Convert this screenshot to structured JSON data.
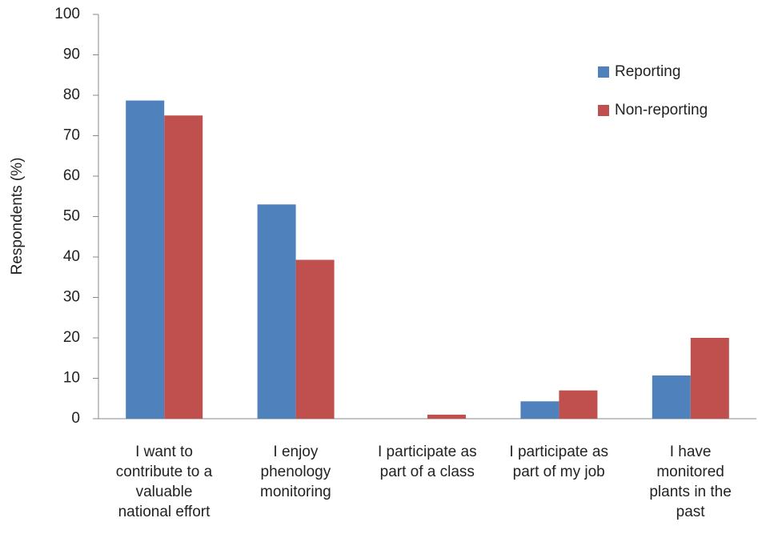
{
  "chart_data": {
    "type": "bar",
    "ylabel": "Respondents  (%)",
    "categories": [
      "I want to\ncontribute to a\nvaluable\nnational effort",
      "I enjoy\nphenology\nmonitoring",
      "I participate as\npart of a class",
      "I participate as\npart of my job",
      "I have\nmonitored\nplants in the\npast"
    ],
    "series": [
      {
        "name": "Reporting",
        "color": "#4f81bd",
        "values": [
          78.7,
          53,
          0,
          4.3,
          10.7
        ]
      },
      {
        "name": "Non-reporting",
        "color": "#c0504d",
        "values": [
          75,
          39.3,
          1,
          7,
          20
        ]
      }
    ],
    "ylim": [
      0,
      100
    ],
    "yticks": [
      0,
      10,
      20,
      30,
      40,
      50,
      60,
      70,
      80,
      90,
      100
    ],
    "grid": false,
    "legend": "upper right"
  }
}
